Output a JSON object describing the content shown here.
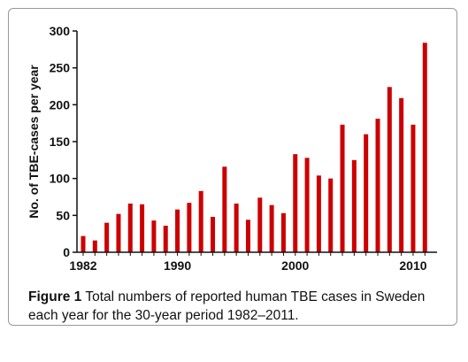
{
  "caption": {
    "figure_label": "Figure 1",
    "text": "Total numbers of reported human TBE cases in Sweden each year for the 30-year period 1982–2011."
  },
  "colors": {
    "bar": "#cc0000",
    "axis": "#111111",
    "frame": "#999999"
  },
  "chart_data": {
    "type": "bar",
    "title": "",
    "xlabel": "",
    "ylabel": "No. of TBE-cases per year",
    "ylim": [
      0,
      300
    ],
    "yticks": [
      0,
      50,
      100,
      150,
      200,
      250,
      300
    ],
    "xtick_labels": [
      "1982",
      "1990",
      "2000",
      "2010"
    ],
    "grid": false,
    "categories": [
      1982,
      1983,
      1984,
      1985,
      1986,
      1987,
      1988,
      1989,
      1990,
      1991,
      1992,
      1993,
      1994,
      1995,
      1996,
      1997,
      1998,
      1999,
      2000,
      2001,
      2002,
      2003,
      2004,
      2005,
      2006,
      2007,
      2008,
      2009,
      2010,
      2011
    ],
    "values": [
      22,
      16,
      40,
      52,
      66,
      65,
      43,
      36,
      58,
      67,
      83,
      48,
      116,
      66,
      44,
      74,
      64,
      53,
      133,
      128,
      104,
      100,
      173,
      125,
      160,
      181,
      224,
      209,
      173,
      284
    ]
  }
}
